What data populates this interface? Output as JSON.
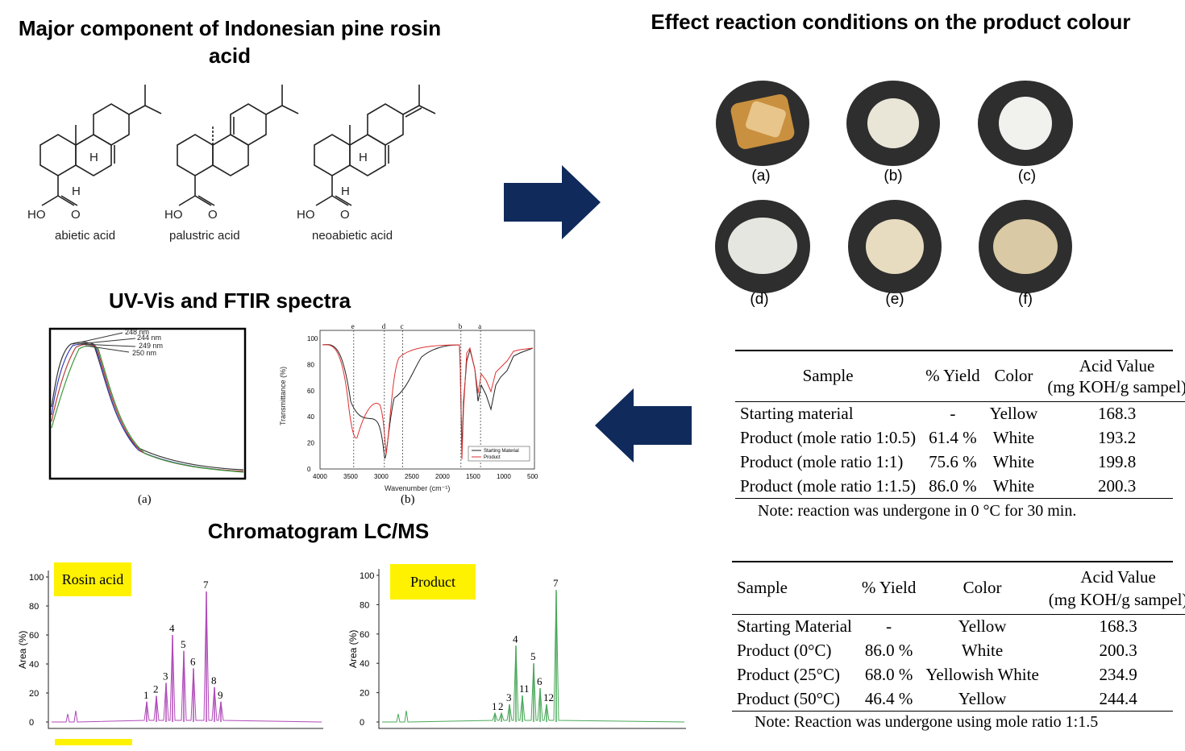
{
  "headings": {
    "rosin": "Major component of Indonesian pine rosin acid",
    "colour": "Effect reaction conditions on the product colour",
    "spectra": "UV-Vis and FTIR spectra",
    "chromatogram": "Chromatogram LC/MS"
  },
  "molecules": [
    {
      "name": "abietic acid",
      "group": "HO",
      "o": "O",
      "h_top": "H",
      "h_bottom": "H"
    },
    {
      "name": "palustric acid",
      "group": "HO",
      "o": "O",
      "h_top": "",
      "h_bottom": ""
    },
    {
      "name": "neoabietic acid",
      "group": "HO",
      "o": "O",
      "h_top": "H",
      "h_bottom": "H"
    }
  ],
  "photos": [
    {
      "label": "(a)",
      "fill": "#c9903f"
    },
    {
      "label": "(b)",
      "fill": "#e9e6d8"
    },
    {
      "label": "(c)",
      "fill": "#f1f1ee"
    },
    {
      "label": "(d)",
      "fill": "#e6e6e0"
    },
    {
      "label": "(e)",
      "fill": "#e7dcc0"
    },
    {
      "label": "(f)",
      "fill": "#d9c9a4"
    }
  ],
  "arrows_color": "#102a5c",
  "uvvis": {
    "annotations": [
      "248 nm",
      "244 nm",
      "249 nm",
      "250 nm"
    ],
    "panel_label": "(a)"
  },
  "ftir": {
    "ylabel": "Transmittance (%)",
    "xlabel": "Wavenumber (cm⁻¹)",
    "panel_label": "(b)",
    "x_ticks": [
      "4000",
      "3500",
      "3000",
      "2500",
      "2000",
      "1500",
      "1000",
      "500"
    ],
    "y_ticks": [
      "0",
      "20",
      "40",
      "60",
      "80",
      "100"
    ],
    "markers": [
      {
        "label": "e",
        "x": 3450
      },
      {
        "label": "d",
        "x": 2950
      },
      {
        "label": "c",
        "x": 2650
      },
      {
        "label": "b",
        "x": 1700
      },
      {
        "label": "a",
        "x": 1380
      }
    ],
    "legend": [
      "Starting Material",
      "Product"
    ]
  },
  "chrom_rosin": {
    "tag": "Rosin acid",
    "ylabel": "Area (%)",
    "y_ticks": [
      "0",
      "20",
      "40",
      "60",
      "80",
      "100"
    ],
    "peaks": [
      {
        "label": "1",
        "h": 14
      },
      {
        "label": "2",
        "h": 18
      },
      {
        "label": "3",
        "h": 27
      },
      {
        "label": "4",
        "h": 60
      },
      {
        "label": "5",
        "h": 49
      },
      {
        "label": "6",
        "h": 37
      },
      {
        "label": "7",
        "h": 90
      },
      {
        "label": "8",
        "h": 24
      },
      {
        "label": "9",
        "h": 14
      }
    ],
    "color": "#b04ab8"
  },
  "chrom_product": {
    "tag": "Product",
    "ylabel": "Area (%)",
    "y_ticks": [
      "0",
      "20",
      "40",
      "60",
      "80",
      "100"
    ],
    "peaks": [
      {
        "label": "1",
        "h": 6
      },
      {
        "label": "2",
        "h": 6
      },
      {
        "label": "3",
        "h": 12
      },
      {
        "label": "4",
        "h": 52
      },
      {
        "label": "11",
        "h": 18
      },
      {
        "label": "5",
        "h": 40
      },
      {
        "label": "6",
        "h": 23
      },
      {
        "label": "12",
        "h": 12
      },
      {
        "label": "7",
        "h": 90
      }
    ],
    "color": "#4aa85a"
  },
  "table1": {
    "headers": [
      "Sample",
      "% Yield",
      "Color",
      "Acid Value",
      "(mg KOH/g sampel)"
    ],
    "rows": [
      [
        "Starting material",
        "-",
        "Yellow",
        "168.3"
      ],
      [
        "Product (mole ratio 1:0.5)",
        "61.4 %",
        "White",
        "193.2"
      ],
      [
        "Product (mole ratio 1:1)",
        "75.6 %",
        "White",
        "199.8"
      ],
      [
        "Product (mole ratio 1:1.5)",
        "86.0 %",
        "White",
        "200.3"
      ]
    ],
    "note": "Note: reaction was undergone in 0 °C for 30 min."
  },
  "table2": {
    "headers": [
      "Sample",
      "% Yield",
      "Color",
      "Acid Value",
      "(mg KOH/g sampel)"
    ],
    "rows": [
      [
        "Starting Material",
        "-",
        "Yellow",
        "168.3"
      ],
      [
        "Product (0°C)",
        "86.0 %",
        "White",
        "200.3"
      ],
      [
        "Product (25°C)",
        "68.0 %",
        "Yellowish White",
        "234.9"
      ],
      [
        "Product (50°C)",
        "46.4 %",
        "Yellow",
        "244.4"
      ]
    ],
    "note": "Note: Reaction was undergone using mole ratio 1:1.5"
  }
}
